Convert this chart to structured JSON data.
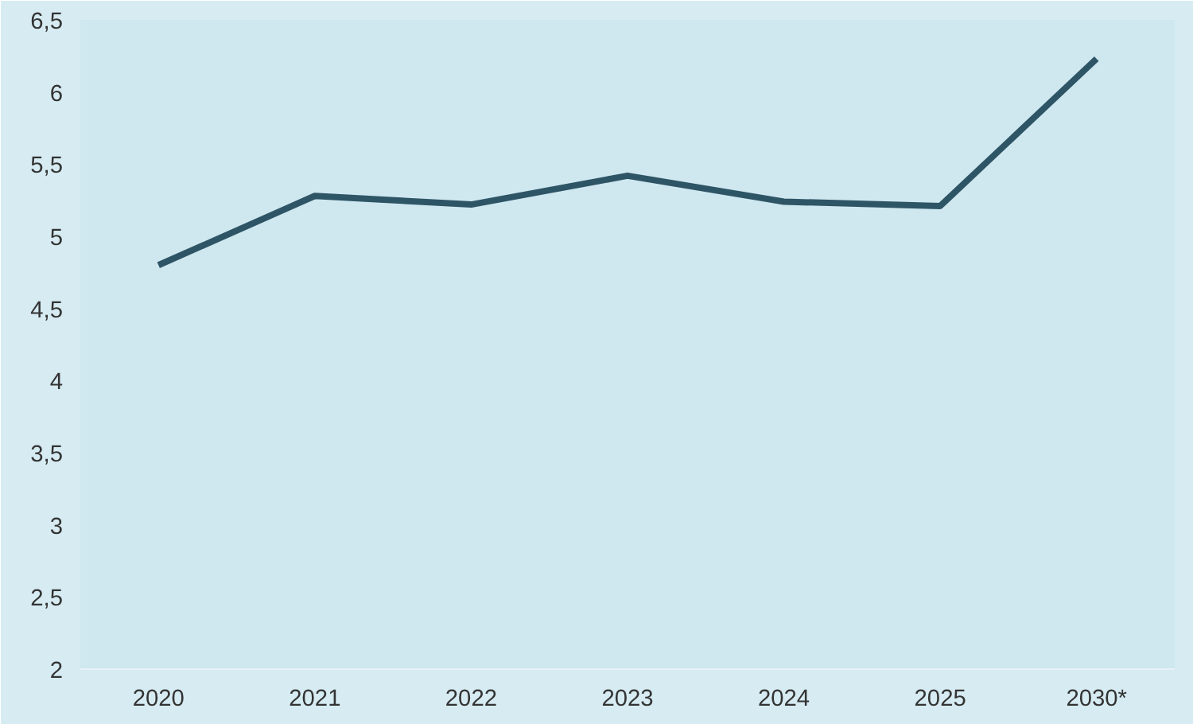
{
  "chart_data": {
    "type": "line",
    "categories": [
      "2020",
      "2021",
      "2022",
      "2023",
      "2024",
      "2025",
      "2030*"
    ],
    "series": [
      {
        "color": "#2e5566",
        "values": [
          4.8,
          5.28,
          5.22,
          5.42,
          5.24,
          5.21,
          6.23
        ]
      }
    ],
    "ylim": [
      2,
      6.5
    ],
    "yticks": [
      2,
      {
        "value": 2.5,
        "label": "2,5"
      },
      3,
      {
        "value": 3.5,
        "label": "3,5"
      },
      4,
      {
        "value": 4.5,
        "label": "4,5"
      },
      5,
      {
        "value": 5.5,
        "label": "5,5"
      },
      6,
      {
        "value": 6.5,
        "label": "6,5"
      }
    ],
    "grid": false,
    "marker": "none",
    "line_style": "solid"
  }
}
